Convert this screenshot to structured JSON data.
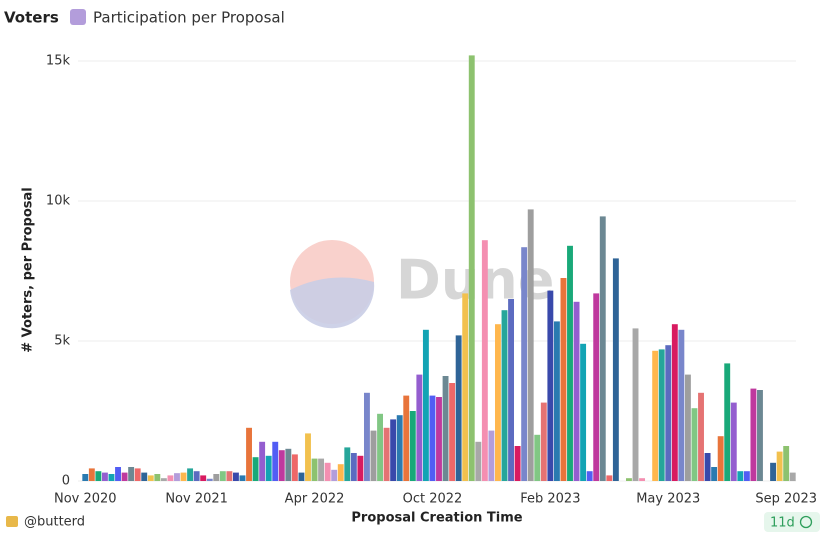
{
  "chart_data": {
    "type": "bar",
    "title": "Voters",
    "subtitle": "Participation per Proposal",
    "x_label": "Proposal Creation Time",
    "y_label": "# Voters, per Proposal",
    "watermark": "Dune",
    "author": "@butterd",
    "age": "11d",
    "ylim": [
      0,
      16000
    ],
    "yticks": [
      0,
      {
        "value": 5000,
        "label": "5k"
      },
      {
        "value": 10000,
        "label": "10k"
      },
      {
        "value": 15000,
        "label": "15k"
      }
    ],
    "grid": true,
    "palette": [
      "#2a7ab0",
      "#e8743b",
      "#19a979",
      "#945ecf",
      "#13a4b4",
      "#525df4",
      "#bf399e",
      "#6c8893",
      "#ee6868",
      "#2f6497",
      "#f2c14e",
      "#8dc26f",
      "#a8a8a8",
      "#f48fb1",
      "#b39ddb",
      "#ffb74d",
      "#26a69a",
      "#5c6bc0",
      "#d81b60",
      "#7986cb",
      "#9e9e9e",
      "#81c784",
      "#e57373",
      "#3949ab"
    ],
    "categories": [
      "Nov 2020",
      null,
      null,
      null,
      null,
      null,
      null,
      null,
      null,
      null,
      null,
      null,
      null,
      null,
      null,
      null,
      null,
      "Nov 2021",
      null,
      null,
      null,
      null,
      null,
      null,
      null,
      null,
      null,
      null,
      null,
      null,
      null,
      null,
      null,
      null,
      null,
      "Apr 2022",
      null,
      null,
      null,
      null,
      null,
      null,
      null,
      null,
      null,
      null,
      null,
      null,
      null,
      null,
      null,
      null,
      null,
      "Oct 2022",
      null,
      null,
      null,
      null,
      null,
      null,
      null,
      null,
      null,
      null,
      null,
      null,
      null,
      null,
      null,
      null,
      null,
      "Feb 2023",
      null,
      null,
      null,
      null,
      null,
      null,
      null,
      null,
      null,
      null,
      null,
      null,
      null,
      null,
      null,
      null,
      null,
      "May 2023",
      null,
      null,
      null,
      null,
      null,
      null,
      null,
      null,
      null,
      null,
      null,
      null,
      null,
      null,
      null,
      null,
      null,
      "Sep 2023",
      null
    ],
    "values": [
      250,
      450,
      350,
      300,
      250,
      500,
      300,
      500,
      450,
      300,
      200,
      250,
      100,
      200,
      280,
      300,
      450,
      350,
      200,
      80,
      250,
      350,
      350,
      300,
      200,
      1900,
      850,
      1400,
      900,
      1400,
      1100,
      1150,
      950,
      300,
      1700,
      800,
      800,
      650,
      400,
      600,
      1200,
      1000,
      900,
      3150,
      1800,
      2400,
      1900,
      2200,
      2350,
      3050,
      2500,
      3800,
      5400,
      3050,
      3000,
      3750,
      3500,
      5200,
      6700,
      15200,
      1400,
      8600,
      1800,
      5600,
      6100,
      6500,
      1250,
      8350,
      9700,
      1650,
      2800,
      6800,
      5700,
      7250,
      8400,
      6400,
      4900,
      350,
      6700,
      9450,
      200,
      7950,
      0,
      100,
      5450,
      100,
      0,
      4650,
      4700,
      4850,
      5600,
      5400,
      3800,
      2600,
      3150,
      1000,
      500,
      1600,
      4200,
      2800,
      350,
      350,
      3300,
      3250,
      0,
      650,
      1050,
      1250,
      300
    ]
  }
}
